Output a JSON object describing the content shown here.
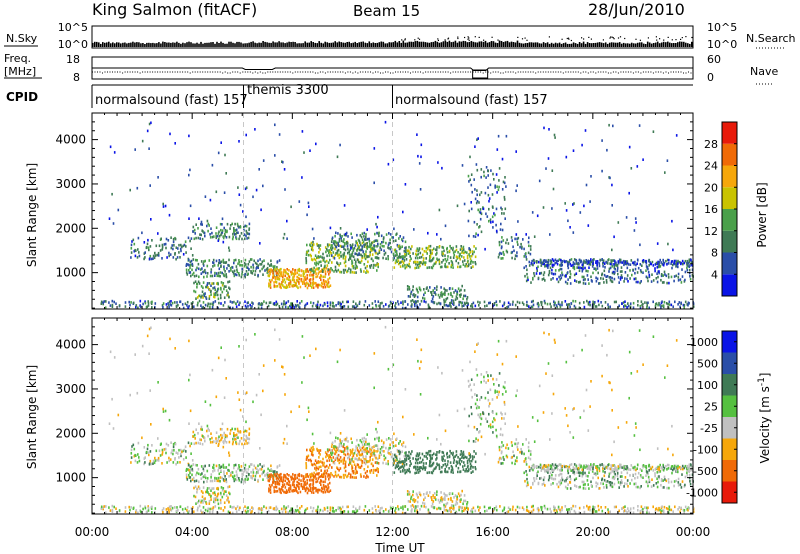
{
  "header": {
    "station": "King Salmon (fitACF)",
    "beam": "Beam 15",
    "date": "28/Jun/2010"
  },
  "panels": {
    "nsky_label": "N.Sky",
    "nsearch_label": "N.Search",
    "freq_label_top": "Freq.",
    "freq_label_unit": "[MHz]",
    "nave_label": "Nave",
    "cpid_label": "CPID",
    "nsky_ticks": [
      "10^5",
      "10^0"
    ],
    "nsearch_ticks": [
      "10^5",
      "10^0"
    ],
    "freq_ticks": [
      "18",
      "8"
    ],
    "nave_ticks": [
      "60",
      "0"
    ]
  },
  "cpid_segments": [
    {
      "label": "normalsound (fast) 157",
      "start_hour": 0,
      "end_hour": 6.05
    },
    {
      "label": "themis 3300",
      "start_hour": 6.05,
      "end_hour": 12.0
    },
    {
      "label": "normalsound (fast) 157",
      "start_hour": 12.0,
      "end_hour": 24.0
    }
  ],
  "axes": {
    "x_label": "Time UT",
    "x_ticks": [
      "00:00",
      "04:00",
      "08:00",
      "12:00",
      "16:00",
      "20:00",
      "00:00"
    ],
    "y_label": "Slant Range [km]",
    "y_ticks": [
      "1000",
      "2000",
      "3000",
      "4000"
    ]
  },
  "colorbars": {
    "power": {
      "label": "Power [dB]",
      "ticks": [
        "4",
        "8",
        "12",
        "16",
        "20",
        "24",
        "28"
      ],
      "colors": [
        "#0a14e6",
        "#2a4ea8",
        "#3f7a55",
        "#4aa04a",
        "#c9c300",
        "#f6a70a",
        "#f06a06",
        "#e81a0a"
      ]
    },
    "velocity": {
      "label": "Velocity [m s^-1]",
      "ticks": [
        "1000",
        "500",
        "100",
        "25",
        "-25",
        "-100",
        "-500",
        "-1000"
      ],
      "colors": [
        "#0a14e6",
        "#2a4ea8",
        "#3f7a55",
        "#55c040",
        "#c0c0c0",
        "#f6a70a",
        "#f06a06",
        "#e81a0a"
      ]
    }
  },
  "chart_data": {
    "type": "heatmap",
    "x_range_hours": [
      0,
      24
    ],
    "y_range_km": [
      180,
      4600
    ],
    "nsky_scale": "log",
    "frequency_mhz_approx": 11,
    "nave_approx": 25,
    "scatter_regions": [
      {
        "t0": 0.3,
        "t1": 24.0,
        "r0": 180,
        "r1": 360,
        "power_db": 8,
        "velocity": 0,
        "density": 0.5
      },
      {
        "t0": 4.0,
        "t1": 6.3,
        "r0": 1750,
        "r1": 2100,
        "power_db": 10,
        "velocity": -25,
        "density": 0.45
      },
      {
        "t0": 1.5,
        "t1": 4.0,
        "r0": 1300,
        "r1": 1800,
        "power_db": 8,
        "velocity": 20,
        "density": 0.3
      },
      {
        "t0": 3.7,
        "t1": 7.5,
        "r0": 900,
        "r1": 1300,
        "power_db": 10,
        "velocity": 25,
        "density": 0.45
      },
      {
        "t0": 4.0,
        "t1": 5.5,
        "r0": 400,
        "r1": 800,
        "power_db": 12,
        "velocity": 0,
        "density": 0.5
      },
      {
        "t0": 7.0,
        "t1": 9.5,
        "r0": 650,
        "r1": 1100,
        "power_db": 22,
        "velocity": -300,
        "density": 0.75
      },
      {
        "t0": 8.5,
        "t1": 11.5,
        "r0": 1000,
        "r1": 1700,
        "power_db": 14,
        "velocity": -100,
        "density": 0.4
      },
      {
        "t0": 9.5,
        "t1": 12.5,
        "r0": 1300,
        "r1": 1900,
        "power_db": 10,
        "velocity": 0,
        "density": 0.35
      },
      {
        "t0": 12.0,
        "t1": 15.3,
        "r0": 1100,
        "r1": 1600,
        "power_db": 14,
        "velocity": 120,
        "density": 0.55
      },
      {
        "t0": 12.5,
        "t1": 15.0,
        "r0": 300,
        "r1": 700,
        "power_db": 10,
        "velocity": 0,
        "density": 0.4
      },
      {
        "t0": 15.0,
        "t1": 16.5,
        "r0": 1800,
        "r1": 3400,
        "power_db": 8,
        "velocity": 20,
        "density": 0.15
      },
      {
        "t0": 17.2,
        "t1": 24.0,
        "r0": 750,
        "r1": 1300,
        "power_db": 8,
        "velocity": 30,
        "density": 0.35
      },
      {
        "t0": 17.5,
        "t1": 24.0,
        "r0": 1150,
        "r1": 1300,
        "power_db": 6,
        "velocity": 20,
        "density": 0.5
      },
      {
        "t0": 16.2,
        "t1": 17.5,
        "r0": 1300,
        "r1": 1800,
        "power_db": 9,
        "velocity": 10,
        "density": 0.3
      },
      {
        "t0": 0.5,
        "t1": 23.5,
        "r0": 1500,
        "r1": 4400,
        "power_db": 5,
        "velocity": 0,
        "density": 0.012
      }
    ],
    "dashed_markers_hours": [
      6.05,
      12.0
    ]
  }
}
